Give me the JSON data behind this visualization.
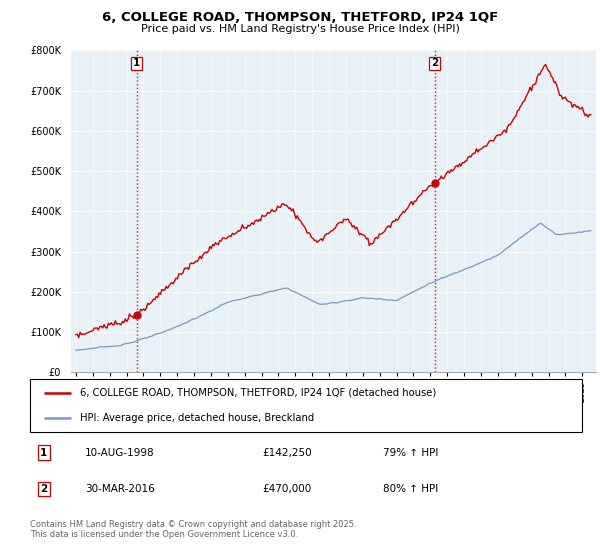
{
  "title_line1": "6, COLLEGE ROAD, THOMPSON, THETFORD, IP24 1QF",
  "title_line2": "Price paid vs. HM Land Registry's House Price Index (HPI)",
  "legend_line1": "6, COLLEGE ROAD, THOMPSON, THETFORD, IP24 1QF (detached house)",
  "legend_line2": "HPI: Average price, detached house, Breckland",
  "annotation1_label": "1",
  "annotation1_date": "10-AUG-1998",
  "annotation1_price": "£142,250",
  "annotation1_hpi": "79% ↑ HPI",
  "annotation2_label": "2",
  "annotation2_date": "30-MAR-2016",
  "annotation2_price": "£470,000",
  "annotation2_hpi": "80% ↑ HPI",
  "footer": "Contains HM Land Registry data © Crown copyright and database right 2025.\nThis data is licensed under the Open Government Licence v3.0.",
  "red_color": "#cc0000",
  "blue_color": "#7799cc",
  "chart_bg": "#e8f0f8",
  "dashed_red": "#dd0000",
  "ylim": [
    0,
    800000
  ],
  "yticks": [
    0,
    100000,
    200000,
    300000,
    400000,
    500000,
    600000,
    700000,
    800000
  ],
  "sale1_x": 1998.61,
  "sale1_y": 142250,
  "sale2_x": 2016.25,
  "sale2_y": 470000,
  "xlim_left": 1994.7,
  "xlim_right": 2025.8
}
